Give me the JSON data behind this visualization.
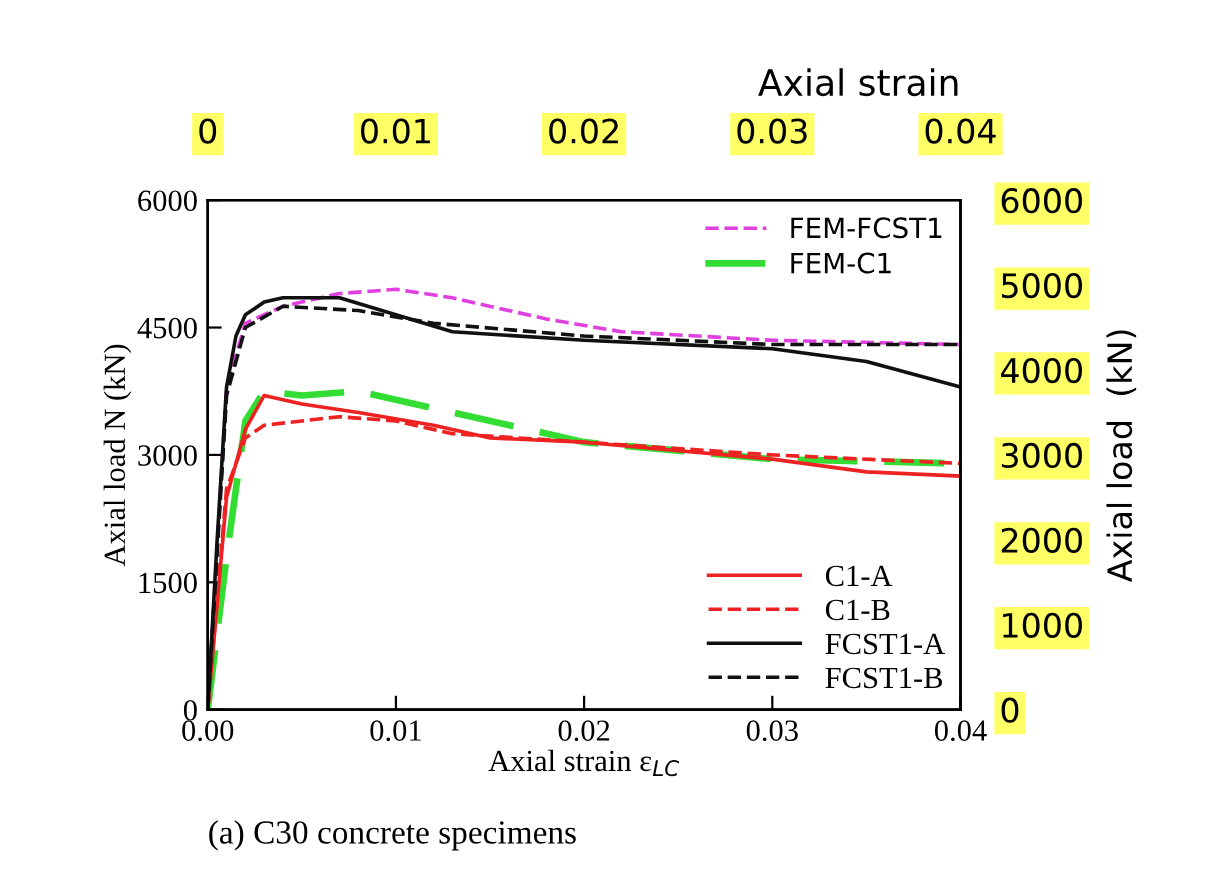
{
  "chart_data": {
    "type": "line",
    "xlabel": "Axial strain ε$_{LC}$",
    "ylabel": "Axial load N (kN)",
    "x2label": "Axial strain",
    "y2label": "Axial load  (kN)",
    "annotations": [
      "(a) C30 concrete specimens"
    ],
    "xlim": [
      0,
      0.04
    ],
    "xticks": [
      {
        "value": 0,
        "label": "0.00"
      },
      {
        "value": 0.01,
        "label": "0.01"
      },
      {
        "value": 0.02,
        "label": "0.02"
      },
      {
        "value": 0.03,
        "label": "0.03"
      },
      {
        "value": 0.04,
        "label": "0.04"
      }
    ],
    "x2lim": [
      0,
      0.04
    ],
    "x2ticks": [
      0,
      0.01,
      0.02,
      0.03,
      0.04
    ],
    "ylim": [
      0,
      6000
    ],
    "yticks": [
      0,
      1500,
      3000,
      4500,
      6000
    ],
    "y2lim": [
      0,
      6000
    ],
    "y2ticks": [
      0,
      1000,
      2000,
      3000,
      4000,
      5000,
      6000
    ],
    "grid": false,
    "legend": "right",
    "series": [
      {
        "name": "FEM-FCST1",
        "color": "#e040e0",
        "line_style": "dashed",
        "x": [
          0,
          0.001,
          0.002,
          0.004,
          0.007,
          0.01,
          0.013,
          0.018,
          0.022,
          0.03,
          0.04
        ],
        "values": [
          0,
          3800,
          4550,
          4750,
          4900,
          4950,
          4850,
          4600,
          4450,
          4350,
          4300
        ]
      },
      {
        "name": "FEM-C1",
        "color": "#33dd33",
        "line_style": "dashed",
        "x": [
          0,
          0.001,
          0.002,
          0.003,
          0.005,
          0.008,
          0.012,
          0.02,
          0.025,
          0.03,
          0.04
        ],
        "values": [
          0,
          1800,
          3400,
          3750,
          3700,
          3750,
          3550,
          3150,
          3050,
          2950,
          2900
        ]
      },
      {
        "name": "C1-A",
        "color": "#ee2222",
        "line_style": "solid",
        "x": [
          0,
          0.001,
          0.002,
          0.003,
          0.005,
          0.008,
          0.012,
          0.015,
          0.02,
          0.03,
          0.035,
          0.04
        ],
        "values": [
          0,
          2500,
          3300,
          3700,
          3600,
          3500,
          3350,
          3200,
          3150,
          2950,
          2800,
          2750
        ]
      },
      {
        "name": "C1-B",
        "color": "#ee2222",
        "line_style": "dashed",
        "x": [
          0,
          0.001,
          0.002,
          0.003,
          0.007,
          0.01,
          0.013,
          0.02,
          0.03,
          0.04
        ],
        "values": [
          0,
          2600,
          3200,
          3350,
          3450,
          3400,
          3250,
          3150,
          3000,
          2900
        ]
      },
      {
        "name": "FCST1-A",
        "color": "#111111",
        "line_style": "solid",
        "x": [
          0,
          0.0005,
          0.001,
          0.0015,
          0.002,
          0.003,
          0.004,
          0.007,
          0.01,
          0.013,
          0.02,
          0.03,
          0.035,
          0.04
        ],
        "values": [
          0,
          2000,
          3800,
          4400,
          4650,
          4800,
          4850,
          4850,
          4650,
          4450,
          4350,
          4250,
          4100,
          3800
        ]
      },
      {
        "name": "FCST1-B",
        "color": "#111111",
        "line_style": "dashed",
        "x": [
          0,
          0.001,
          0.002,
          0.004,
          0.008,
          0.012,
          0.02,
          0.03,
          0.04
        ],
        "values": [
          0,
          3700,
          4500,
          4750,
          4700,
          4550,
          4400,
          4300,
          4300
        ]
      }
    ]
  }
}
